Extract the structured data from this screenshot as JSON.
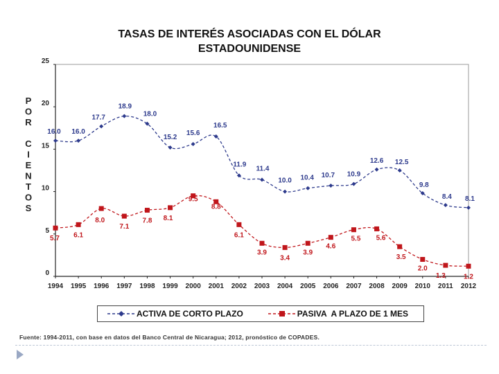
{
  "chart_data": {
    "type": "line",
    "title": "TASAS DE INTERÉS ASOCIADAS CON EL DÓLAR",
    "title_line2": "ESTADOUNIDENSE",
    "ylabel": "POR CIENTOS",
    "ylabel_letters": [
      "P",
      "O",
      "R",
      "",
      "C",
      "I",
      "E",
      "N",
      "T",
      "O",
      "S"
    ],
    "ylim": [
      0,
      25
    ],
    "yticks": [
      "0",
      "5",
      "10",
      "15",
      "20",
      "25"
    ],
    "categories": [
      "1994",
      "1995",
      "1996",
      "1997",
      "1998",
      "1999",
      "2000",
      "2001",
      "2002",
      "2003",
      "2004",
      "2005",
      "2006",
      "2007",
      "2008",
      "2009",
      "2010",
      "2011",
      "2012"
    ],
    "series": [
      {
        "name": "ACTIVA DE CORTO PLAZO",
        "color": "#2d3a8c",
        "values": [
          16.0,
          16.0,
          17.7,
          18.9,
          18.0,
          15.2,
          15.6,
          16.5,
          11.9,
          11.4,
          10.0,
          10.4,
          10.7,
          10.9,
          12.6,
          12.5,
          9.8,
          8.4,
          8.1
        ],
        "labels": [
          "16.0",
          "16.0",
          "17.7",
          "18.9",
          "18.0",
          "15.2",
          "15.6",
          "16.5",
          "11.9",
          "11.4",
          "10.0",
          "10.4",
          "10.7",
          "10.9",
          "12.6",
          "12.5",
          "9.8",
          "8.4",
          "8.1"
        ]
      },
      {
        "name": "PASIVA  A PLAZO DE 1 MES",
        "color": "#c0161b",
        "values": [
          5.7,
          6.1,
          8.0,
          7.1,
          7.8,
          8.1,
          9.5,
          8.8,
          6.1,
          3.9,
          3.4,
          3.9,
          4.6,
          5.5,
          5.6,
          3.5,
          2.0,
          1.3,
          1.2
        ],
        "labels": [
          "5.7",
          "6.1",
          "8.0",
          "7.1",
          "7.8",
          "8.1",
          "9.5",
          "8.8",
          "6.1",
          "3.9",
          "3.4",
          "3.9",
          "4.6",
          "5.5",
          "5.6",
          "3.5",
          "2.0",
          "1.3",
          "1.2"
        ]
      }
    ],
    "legend": [
      "ACTIVA DE CORTO PLAZO",
      "PASIVA  A PLAZO DE 1 MES"
    ],
    "source": "Fuente: 1994-2011,  con base en datos del Banco Central de Nicaragua; 2012, pronóstico de COPADES."
  }
}
